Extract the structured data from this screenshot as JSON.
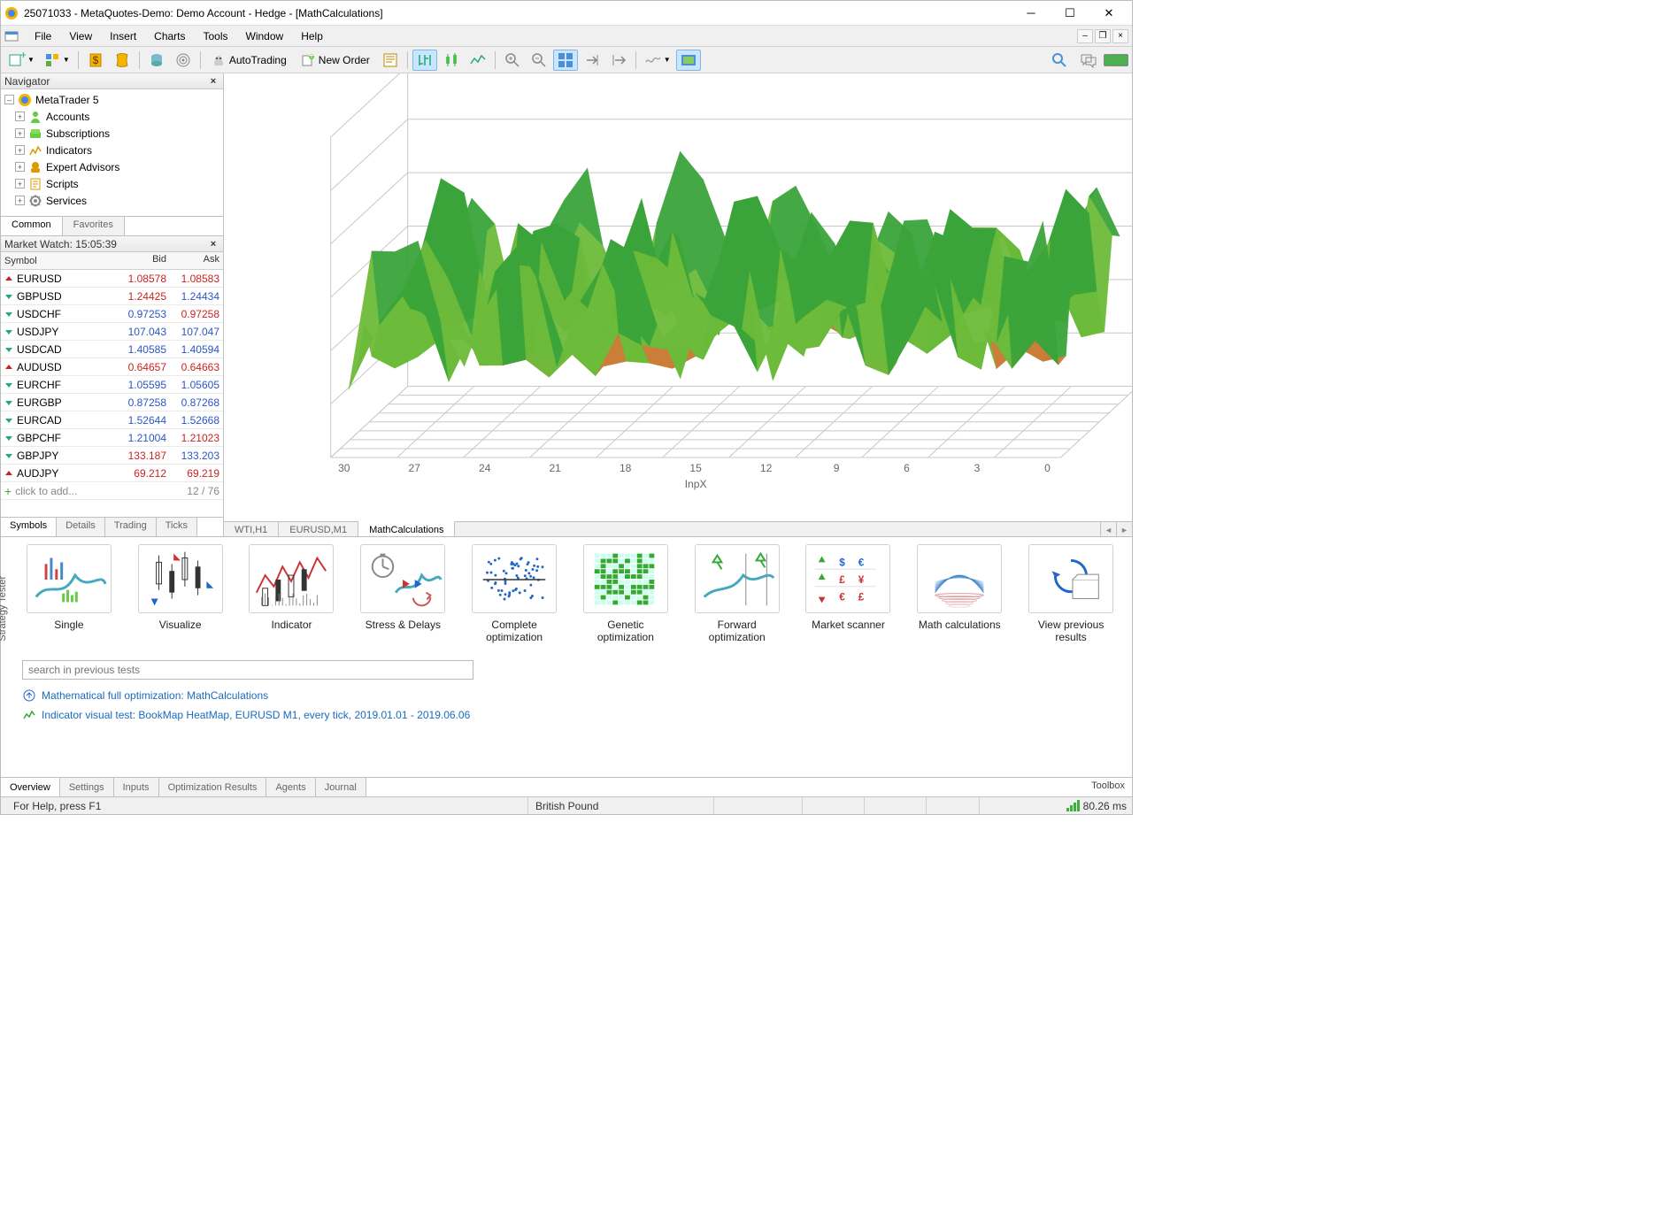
{
  "window": {
    "title": "25071033 - MetaQuotes-Demo: Demo Account - Hedge - [MathCalculations]"
  },
  "menu": {
    "items": [
      "File",
      "View",
      "Insert",
      "Charts",
      "Tools",
      "Window",
      "Help"
    ]
  },
  "toolbar": {
    "autotrading": "AutoTrading",
    "neworder": "New Order"
  },
  "navigator": {
    "title": "Navigator",
    "root": "MetaTrader 5",
    "items": [
      {
        "label": "Accounts",
        "icon": "accounts"
      },
      {
        "label": "Subscriptions",
        "icon": "subscriptions"
      },
      {
        "label": "Indicators",
        "icon": "indicators"
      },
      {
        "label": "Expert Advisors",
        "icon": "ea"
      },
      {
        "label": "Scripts",
        "icon": "scripts"
      },
      {
        "label": "Services",
        "icon": "services"
      }
    ],
    "tabs": [
      "Common",
      "Favorites"
    ]
  },
  "market_watch": {
    "title": "Market Watch: 15:05:39",
    "head": {
      "symbol": "Symbol",
      "bid": "Bid",
      "ask": "Ask"
    },
    "rows": [
      {
        "sym": "EURUSD",
        "bid": "1.08578",
        "ask": "1.08583",
        "bid_c": "#c22",
        "ask_c": "#c22",
        "dir": "down"
      },
      {
        "sym": "GBPUSD",
        "bid": "1.24425",
        "ask": "1.24434",
        "bid_c": "#c22",
        "ask_c": "#2a56c6",
        "dir": "up"
      },
      {
        "sym": "USDCHF",
        "bid": "0.97253",
        "ask": "0.97258",
        "bid_c": "#2a56c6",
        "ask_c": "#c22",
        "dir": "up"
      },
      {
        "sym": "USDJPY",
        "bid": "107.043",
        "ask": "107.047",
        "bid_c": "#2a56c6",
        "ask_c": "#2a56c6",
        "dir": "up"
      },
      {
        "sym": "USDCAD",
        "bid": "1.40585",
        "ask": "1.40594",
        "bid_c": "#2a56c6",
        "ask_c": "#2a56c6",
        "dir": "up"
      },
      {
        "sym": "AUDUSD",
        "bid": "0.64657",
        "ask": "0.64663",
        "bid_c": "#c22",
        "ask_c": "#c22",
        "dir": "down"
      },
      {
        "sym": "EURCHF",
        "bid": "1.05595",
        "ask": "1.05605",
        "bid_c": "#2a56c6",
        "ask_c": "#2a56c6",
        "dir": "up"
      },
      {
        "sym": "EURGBP",
        "bid": "0.87258",
        "ask": "0.87268",
        "bid_c": "#2a56c6",
        "ask_c": "#2a56c6",
        "dir": "up"
      },
      {
        "sym": "EURCAD",
        "bid": "1.52644",
        "ask": "1.52668",
        "bid_c": "#2a56c6",
        "ask_c": "#2a56c6",
        "dir": "up"
      },
      {
        "sym": "GBPCHF",
        "bid": "1.21004",
        "ask": "1.21023",
        "bid_c": "#2a56c6",
        "ask_c": "#c22",
        "dir": "up"
      },
      {
        "sym": "GBPJPY",
        "bid": "133.187",
        "ask": "133.203",
        "bid_c": "#c22",
        "ask_c": "#2a56c6",
        "dir": "up"
      },
      {
        "sym": "AUDJPY",
        "bid": "69.212",
        "ask": "69.219",
        "bid_c": "#c22",
        "ask_c": "#c22",
        "dir": "down"
      }
    ],
    "add_row": "click to add...",
    "counter": "12 / 76",
    "tabs": [
      "Symbols",
      "Details",
      "Trading",
      "Ticks"
    ]
  },
  "chart": {
    "tabs": [
      "WTI,H1",
      "EURUSD,M1",
      "MathCalculations"
    ],
    "active_tab": 2,
    "surface": {
      "xlabel": "InpX",
      "x_ticks": [
        30,
        27,
        24,
        21,
        18,
        15,
        12,
        9,
        6,
        3,
        0
      ],
      "colors": {
        "peak": "#3aa43a",
        "mid": "#6dbb3a",
        "valley": "#d07a3a",
        "grid": "#c8c8c8",
        "bg": "#ffffff"
      }
    }
  },
  "tester": {
    "vlabel": "Strategy Tester",
    "modes": [
      {
        "label": "Single"
      },
      {
        "label": "Visualize"
      },
      {
        "label": "Indicator"
      },
      {
        "label": "Stress & Delays"
      },
      {
        "label": "Complete optimization"
      },
      {
        "label": "Genetic optimization"
      },
      {
        "label": "Forward optimization"
      },
      {
        "label": "Market scanner"
      },
      {
        "label": "Math calculations"
      },
      {
        "label": "View previous results"
      }
    ],
    "search_placeholder": "search in previous tests",
    "links": [
      "Mathematical full optimization: MathCalculations",
      "Indicator visual test: BookMap HeatMap, EURUSD M1, every tick, 2019.01.01 - 2019.06.06"
    ],
    "tabs": [
      "Overview",
      "Settings",
      "Inputs",
      "Optimization Results",
      "Agents",
      "Journal"
    ],
    "toolbox_label": "Toolbox"
  },
  "status": {
    "help": "For Help, press F1",
    "cur": "British Pound",
    "ping": "80.26 ms"
  }
}
